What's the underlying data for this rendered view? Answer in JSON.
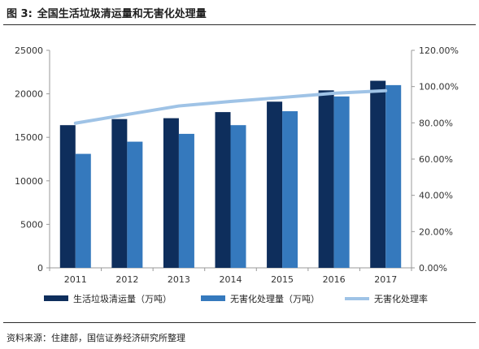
{
  "figure": {
    "number": "图 3:",
    "title": "全国生活垃圾清运量和无害化处理量",
    "source": "资料来源：住建部，国信证券经济研究所整理"
  },
  "colors": {
    "series1": "#0e2e5c",
    "series2": "#3579bd",
    "line": "#9fc3e6",
    "axis": "#999999"
  },
  "chart_data": {
    "type": "bar",
    "categories": [
      "2011",
      "2012",
      "2013",
      "2014",
      "2015",
      "2016",
      "2017"
    ],
    "series": [
      {
        "name": "生活垃圾清运量（万吨）",
        "type": "bar",
        "axis": "left",
        "values": [
          16400,
          17100,
          17200,
          17900,
          19100,
          20400,
          21500
        ]
      },
      {
        "name": "无害化处理量（万吨）",
        "type": "bar",
        "axis": "left",
        "values": [
          13100,
          14500,
          15400,
          16400,
          18000,
          19700,
          21000
        ]
      },
      {
        "name": "无害化处理率",
        "type": "line",
        "axis": "right",
        "values": [
          0.798,
          0.846,
          0.893,
          0.918,
          0.94,
          0.963,
          0.977
        ]
      }
    ],
    "y_left": {
      "min": 0,
      "max": 25000,
      "ticks": [
        "0",
        "5000",
        "10000",
        "15000",
        "20000",
        "25000"
      ]
    },
    "y_right": {
      "min": 0,
      "max": 1.2,
      "ticks": [
        "0.00%",
        "20.00%",
        "40.00%",
        "60.00%",
        "80.00%",
        "100.00%",
        "120.00%"
      ]
    },
    "grid": false,
    "legend": "bottom"
  }
}
